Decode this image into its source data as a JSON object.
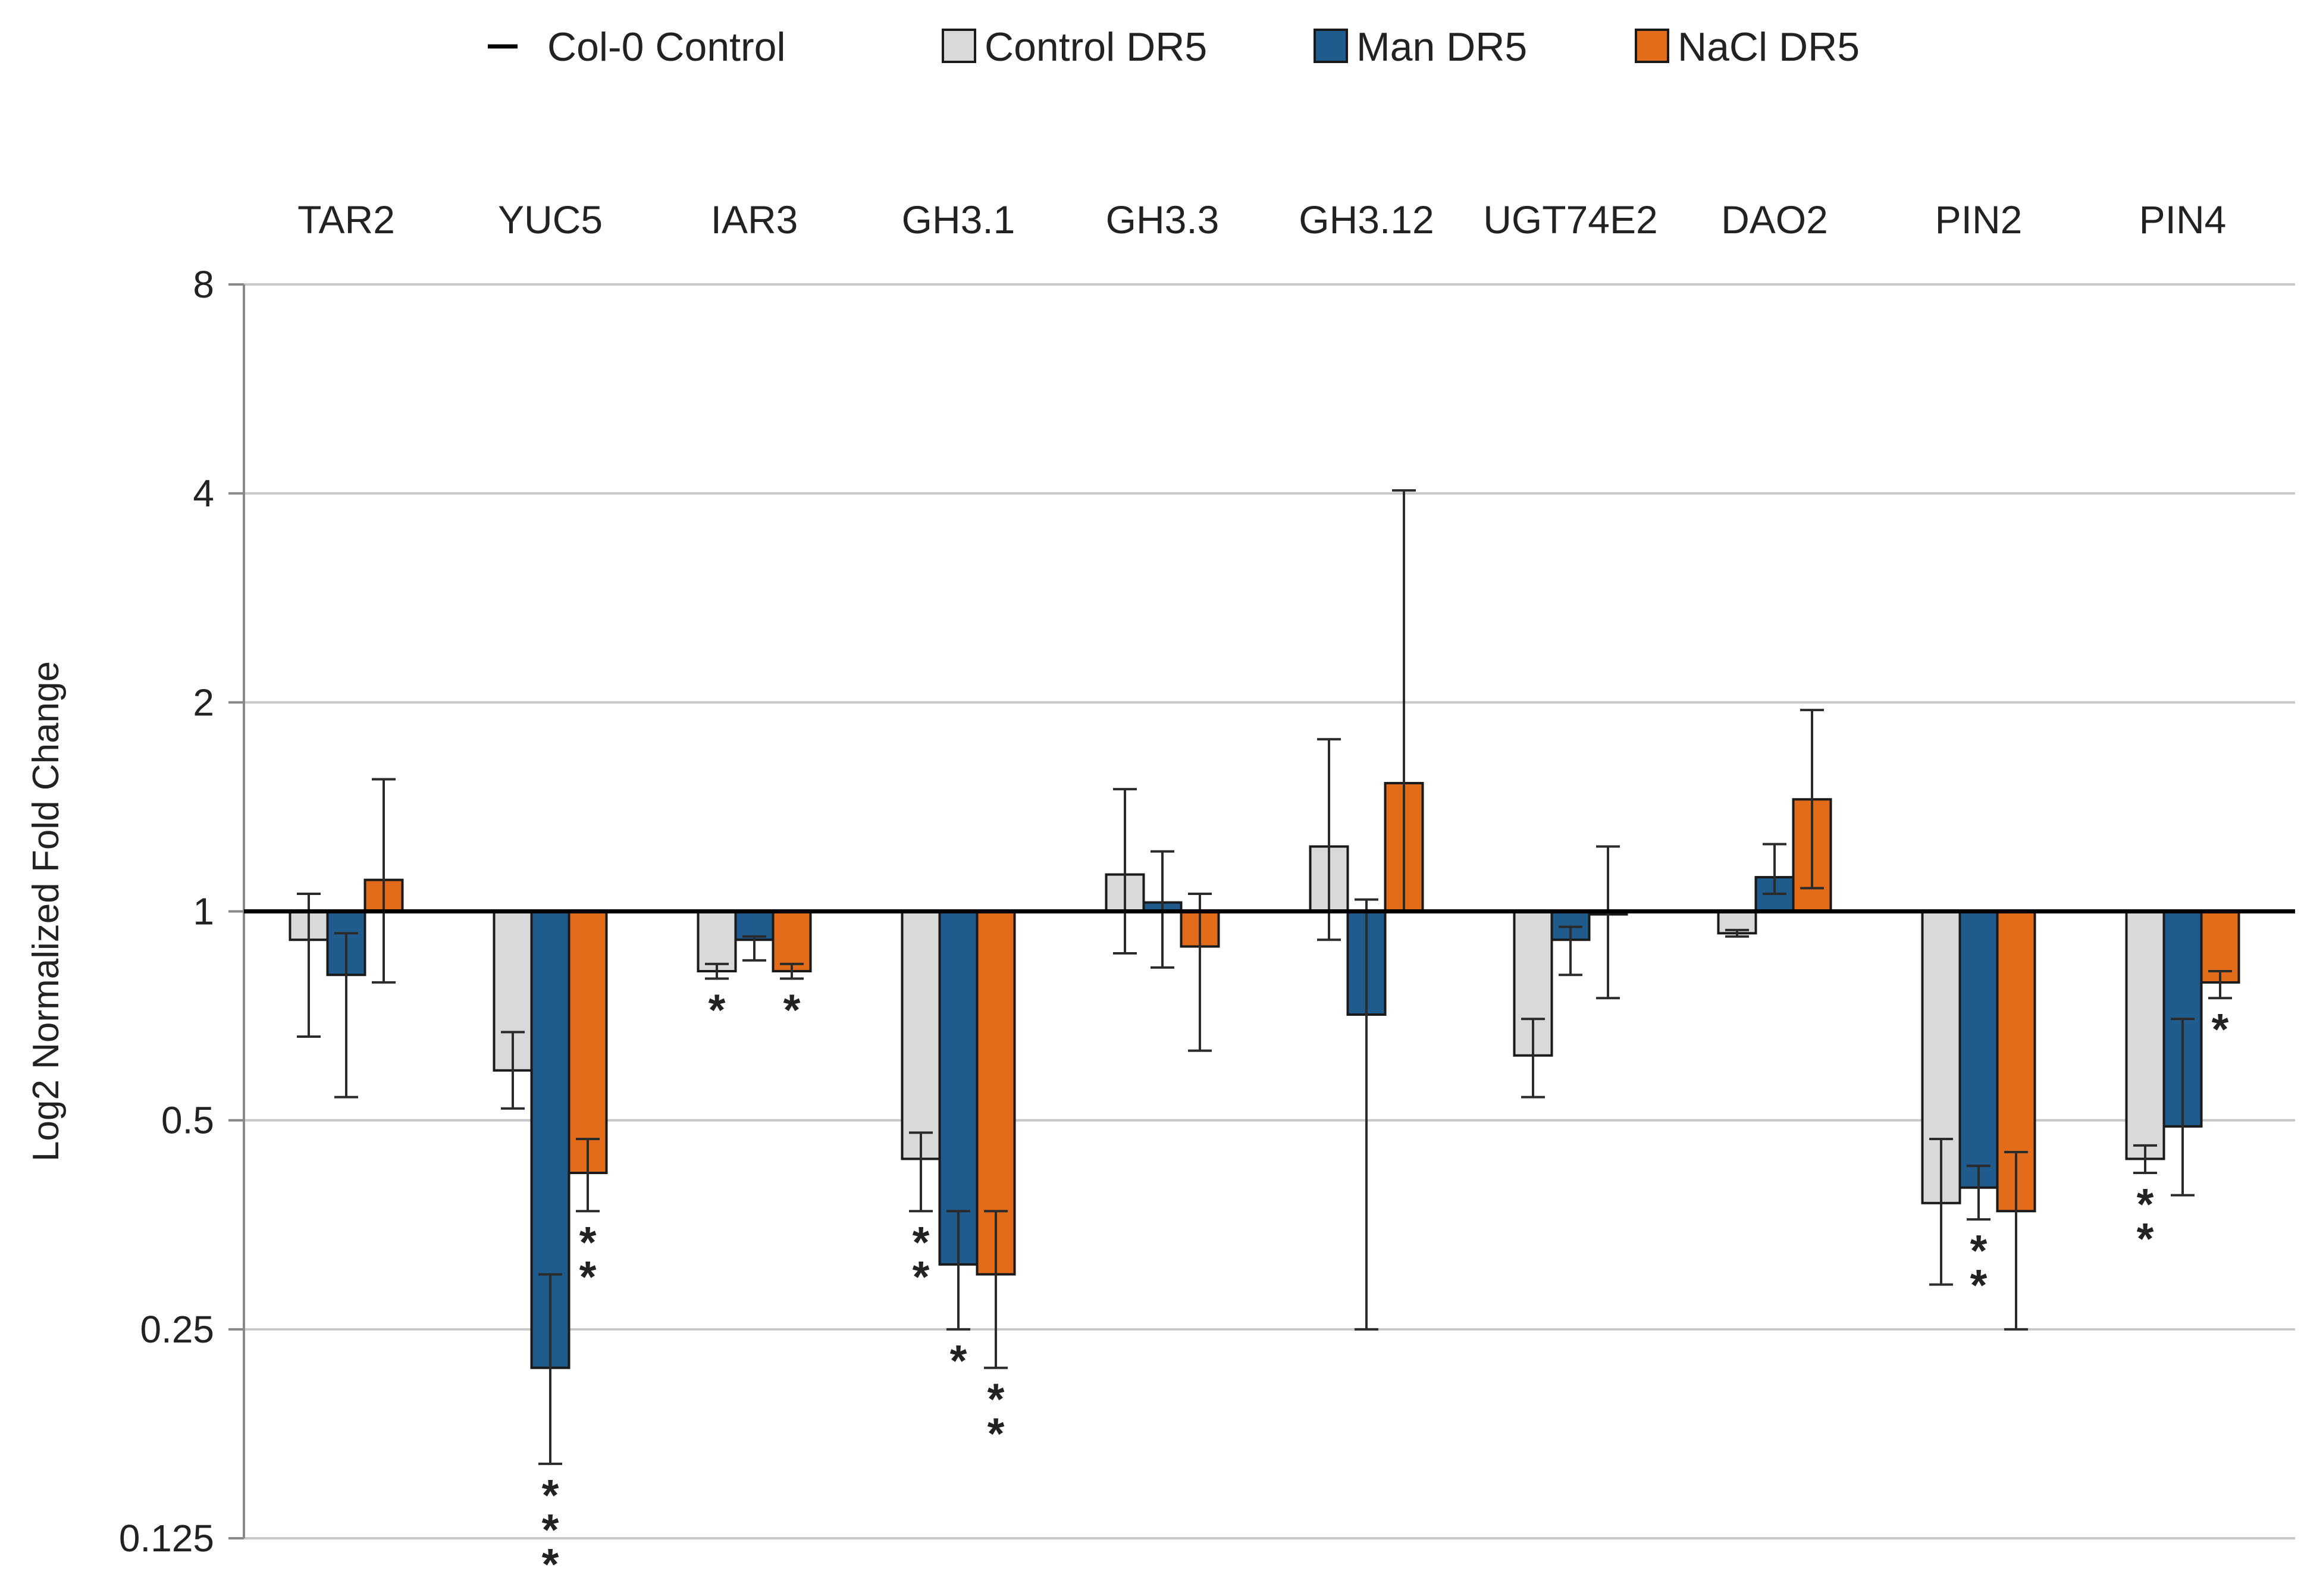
{
  "chart_data": {
    "type": "bar",
    "title": "",
    "ylabel": "Log2 Normalized Fold  Change",
    "xlabel": "",
    "yscale": "log2",
    "baseline": 1,
    "ylim": [
      0.125,
      8
    ],
    "yticks": [
      8,
      4,
      2,
      1,
      0.5,
      0.25,
      0.125
    ],
    "ytick_labels": [
      "8",
      "4",
      "2",
      "1",
      "0.5",
      "0.25",
      "0.125"
    ],
    "grid": true,
    "legend_position": "top",
    "reference_line": {
      "name": "Col-0 Control",
      "value": 1
    },
    "categories": [
      "TAR2",
      "YUC5",
      "IAR3",
      "GH3.1",
      "GH3.3",
      "GH3.12",
      "UGT74E2",
      "DAO2",
      "PIN2",
      "PIN4"
    ],
    "series": [
      {
        "name": "Control DR5",
        "color": "#d9d9d9",
        "values": [
          0.91,
          0.59,
          0.82,
          0.44,
          1.13,
          1.24,
          0.62,
          0.93,
          0.38,
          0.44
        ],
        "err_low": [
          0.66,
          0.52,
          0.8,
          0.37,
          0.87,
          0.91,
          0.54,
          0.92,
          0.29,
          0.42
        ],
        "err_high": [
          1.06,
          0.67,
          0.84,
          0.48,
          1.5,
          1.77,
          0.7,
          0.94,
          0.47,
          0.46
        ],
        "significance": [
          "",
          "",
          "*",
          "**",
          "",
          "",
          "",
          "",
          "",
          "**"
        ]
      },
      {
        "name": "Man DR5",
        "color": "#1f5b8c",
        "values": [
          0.81,
          0.22,
          0.91,
          0.31,
          1.03,
          0.71,
          0.91,
          1.12,
          0.4,
          0.49
        ],
        "err_low": [
          0.54,
          0.16,
          0.85,
          0.25,
          0.83,
          0.25,
          0.81,
          1.06,
          0.36,
          0.39
        ],
        "err_high": [
          0.93,
          0.3,
          0.92,
          0.37,
          1.22,
          1.04,
          0.95,
          1.25,
          0.43,
          0.7
        ],
        "significance": [
          "",
          "***",
          "",
          "*",
          "",
          "",
          "",
          "",
          "**",
          ""
        ]
      },
      {
        "name": "NaCl DR5",
        "color": "#e36c1a",
        "values": [
          1.11,
          0.42,
          0.82,
          0.3,
          0.89,
          1.53,
          0.99,
          1.45,
          0.37,
          0.79
        ],
        "err_low": [
          0.79,
          0.37,
          0.8,
          0.22,
          0.63,
          1.0,
          0.75,
          1.08,
          0.25,
          0.75
        ],
        "err_high": [
          1.55,
          0.47,
          0.84,
          0.37,
          1.06,
          4.04,
          1.24,
          1.95,
          0.45,
          0.82
        ],
        "significance": [
          "",
          "**",
          "*",
          "**",
          "",
          "",
          "",
          "",
          "",
          "*"
        ]
      }
    ]
  }
}
